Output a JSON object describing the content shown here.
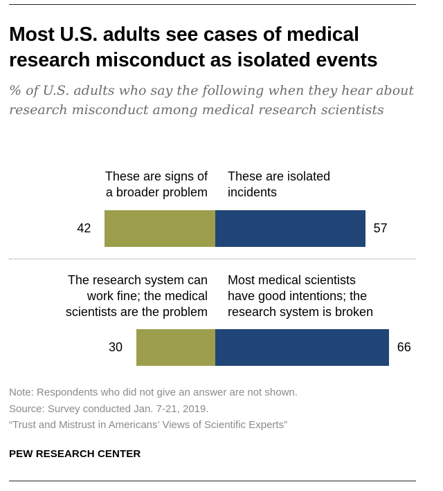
{
  "title": "Most U.S. adults see cases of medical research misconduct as isolated events",
  "subtitle": "% of U.S. adults who say the following when they hear about research misconduct among medical research scientists",
  "colors": {
    "left_bar": "#9c9e4b",
    "right_bar": "#204576"
  },
  "chart_data": [
    {
      "type": "bar",
      "orientation": "diverging-horizontal",
      "series": [
        {
          "name": "These are signs of a broader problem",
          "values": [
            42
          ]
        },
        {
          "name": "These are isolated incidents",
          "values": [
            57
          ]
        }
      ],
      "left_label": "These are signs of\na broader problem",
      "right_label": "These are isolated\nincidents",
      "left_value": 42,
      "right_value": 57,
      "xlim": [
        0,
        100
      ]
    },
    {
      "type": "bar",
      "orientation": "diverging-horizontal",
      "series": [
        {
          "name": "The research system can work fine; the medical scientists are the problem",
          "values": [
            30
          ]
        },
        {
          "name": "Most medical scientists have good intentions; the research system is broken",
          "values": [
            66
          ]
        }
      ],
      "left_label": "The research system can\nwork fine; the medical\nscientists are the problem",
      "right_label": "Most medical scientists\nhave good intentions; the\nresearch system is broken",
      "left_value": 30,
      "right_value": 66,
      "xlim": [
        0,
        100
      ]
    }
  ],
  "notes": {
    "note": "Note: Respondents who did not give an answer are not shown.",
    "source": "Source: Survey conducted Jan. 7-21, 2019.",
    "report": "“Trust and Mistrust in Americans’ Views of Scientific Experts”"
  },
  "brand": "PEW RESEARCH CENTER"
}
